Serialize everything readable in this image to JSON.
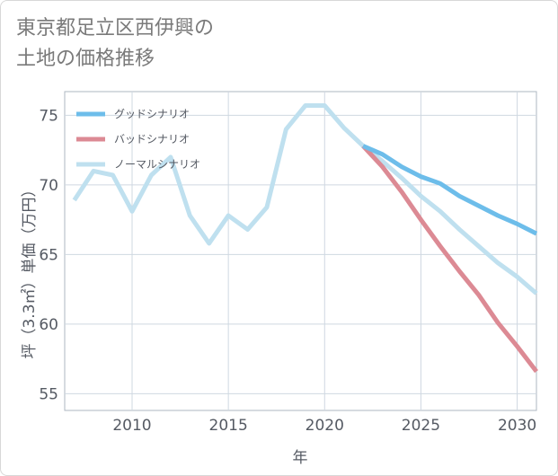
{
  "title": {
    "line1": "東京都足立区西伊興の",
    "line2": "土地の価格推移"
  },
  "chart_data": {
    "type": "line",
    "xlabel": "年",
    "ylabel": "坪（3.3㎡）単価（万円）",
    "xlim": [
      2006.5,
      2031
    ],
    "ylim": [
      53.8,
      76.7
    ],
    "xticks": [
      2010,
      2015,
      2020,
      2025,
      2030
    ],
    "yticks": [
      55,
      60,
      65,
      70,
      75
    ],
    "grid": true,
    "legend_position": "top-left",
    "series": [
      {
        "name": "グッドシナリオ",
        "color": "#6dbdea",
        "x": [
          2022,
          2023,
          2024,
          2025,
          2026,
          2027,
          2028,
          2029,
          2030,
          2031
        ],
        "y": [
          72.8,
          72.2,
          71.3,
          70.6,
          70.1,
          69.2,
          68.5,
          67.8,
          67.2,
          66.5
        ]
      },
      {
        "name": "バッドシナリオ",
        "color": "#dc8a94",
        "x": [
          2022,
          2023,
          2024,
          2025,
          2026,
          2027,
          2028,
          2029,
          2030,
          2031
        ],
        "y": [
          72.8,
          71.3,
          69.5,
          67.5,
          65.6,
          63.8,
          62.1,
          60.1,
          58.4,
          56.6
        ]
      },
      {
        "name": "ノーマルシナリオ",
        "color": "#bfe0ef",
        "x": [
          2007,
          2008,
          2009,
          2010,
          2011,
          2012,
          2013,
          2014,
          2015,
          2016,
          2017,
          2018,
          2019,
          2020,
          2021,
          2022,
          2023,
          2024,
          2025,
          2026,
          2027,
          2028,
          2029,
          2030,
          2031
        ],
        "y": [
          68.9,
          71.0,
          70.7,
          68.1,
          70.7,
          72.0,
          67.8,
          65.8,
          67.8,
          66.8,
          68.4,
          74.0,
          75.7,
          75.7,
          74.1,
          72.8,
          71.7,
          70.5,
          69.2,
          68.1,
          66.8,
          65.6,
          64.4,
          63.4,
          62.2
        ]
      }
    ]
  }
}
